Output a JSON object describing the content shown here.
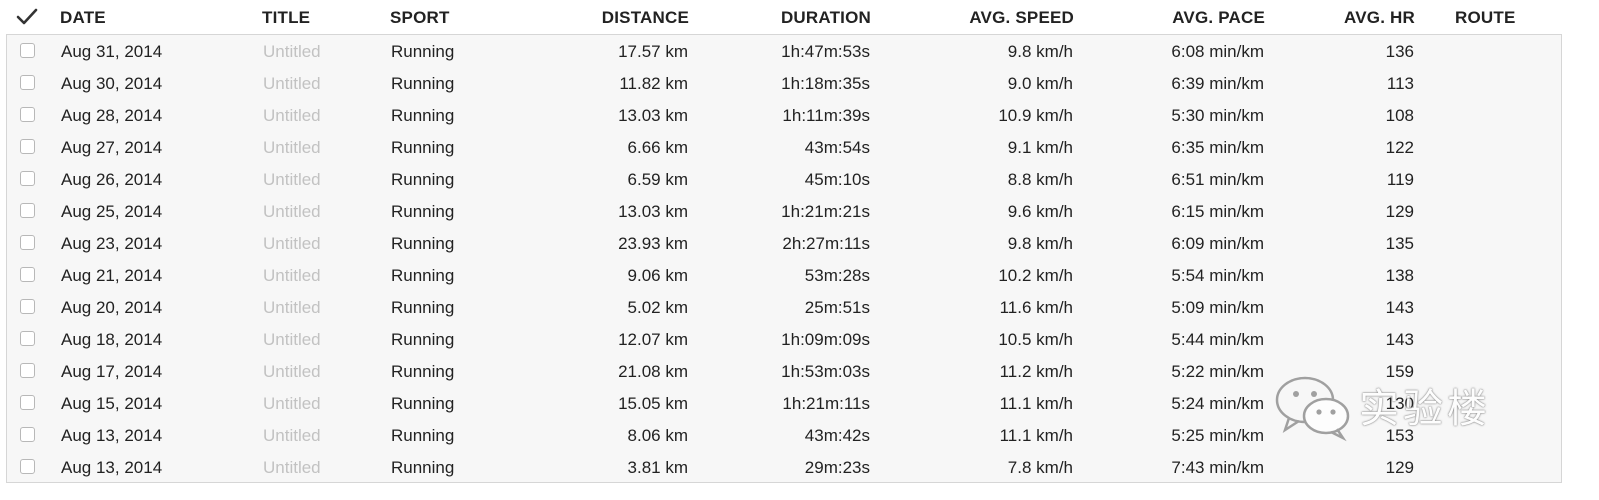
{
  "header": {
    "date": "DATE",
    "title": "TITLE",
    "sport": "SPORT",
    "distance": "DISTANCE",
    "duration": "DURATION",
    "avg_speed": "AVG. SPEED",
    "avg_pace": "AVG. PACE",
    "avg_hr": "AVG. HR",
    "route": "ROUTE",
    "select_all_icon": "checkmark-icon"
  },
  "rows": [
    {
      "date": "Aug 31, 2014",
      "title": "Untitled",
      "sport": "Running",
      "distance": "17.57 km",
      "duration": "1h:47m:53s",
      "speed": "9.8 km/h",
      "pace": "6:08 min/km",
      "hr": "136",
      "route": ""
    },
    {
      "date": "Aug 30, 2014",
      "title": "Untitled",
      "sport": "Running",
      "distance": "11.82 km",
      "duration": "1h:18m:35s",
      "speed": "9.0 km/h",
      "pace": "6:39 min/km",
      "hr": "113",
      "route": ""
    },
    {
      "date": "Aug 28, 2014",
      "title": "Untitled",
      "sport": "Running",
      "distance": "13.03 km",
      "duration": "1h:11m:39s",
      "speed": "10.9 km/h",
      "pace": "5:30 min/km",
      "hr": "108",
      "route": ""
    },
    {
      "date": "Aug 27, 2014",
      "title": "Untitled",
      "sport": "Running",
      "distance": "6.66 km",
      "duration": "43m:54s",
      "speed": "9.1 km/h",
      "pace": "6:35 min/km",
      "hr": "122",
      "route": ""
    },
    {
      "date": "Aug 26, 2014",
      "title": "Untitled",
      "sport": "Running",
      "distance": "6.59 km",
      "duration": "45m:10s",
      "speed": "8.8 km/h",
      "pace": "6:51 min/km",
      "hr": "119",
      "route": ""
    },
    {
      "date": "Aug 25, 2014",
      "title": "Untitled",
      "sport": "Running",
      "distance": "13.03 km",
      "duration": "1h:21m:21s",
      "speed": "9.6 km/h",
      "pace": "6:15 min/km",
      "hr": "129",
      "route": ""
    },
    {
      "date": "Aug 23, 2014",
      "title": "Untitled",
      "sport": "Running",
      "distance": "23.93 km",
      "duration": "2h:27m:11s",
      "speed": "9.8 km/h",
      "pace": "6:09 min/km",
      "hr": "135",
      "route": ""
    },
    {
      "date": "Aug 21, 2014",
      "title": "Untitled",
      "sport": "Running",
      "distance": "9.06 km",
      "duration": "53m:28s",
      "speed": "10.2 km/h",
      "pace": "5:54 min/km",
      "hr": "138",
      "route": ""
    },
    {
      "date": "Aug 20, 2014",
      "title": "Untitled",
      "sport": "Running",
      "distance": "5.02 km",
      "duration": "25m:51s",
      "speed": "11.6 km/h",
      "pace": "5:09 min/km",
      "hr": "143",
      "route": ""
    },
    {
      "date": "Aug 18, 2014",
      "title": "Untitled",
      "sport": "Running",
      "distance": "12.07 km",
      "duration": "1h:09m:09s",
      "speed": "10.5 km/h",
      "pace": "5:44 min/km",
      "hr": "143",
      "route": ""
    },
    {
      "date": "Aug 17, 2014",
      "title": "Untitled",
      "sport": "Running",
      "distance": "21.08 km",
      "duration": "1h:53m:03s",
      "speed": "11.2 km/h",
      "pace": "5:22 min/km",
      "hr": "159",
      "route": ""
    },
    {
      "date": "Aug 15, 2014",
      "title": "Untitled",
      "sport": "Running",
      "distance": "15.05 km",
      "duration": "1h:21m:11s",
      "speed": "11.1 km/h",
      "pace": "5:24 min/km",
      "hr": "130",
      "route": ""
    },
    {
      "date": "Aug 13, 2014",
      "title": "Untitled",
      "sport": "Running",
      "distance": "8.06 km",
      "duration": "43m:42s",
      "speed": "11.1 km/h",
      "pace": "5:25 min/km",
      "hr": "153",
      "route": ""
    },
    {
      "date": "Aug 13, 2014",
      "title": "Untitled",
      "sport": "Running",
      "distance": "3.81 km",
      "duration": "29m:23s",
      "speed": "7.8 km/h",
      "pace": "7:43 min/km",
      "hr": "129",
      "route": ""
    }
  ],
  "watermark": {
    "text": "实验楼",
    "icon": "wechat-icon"
  },
  "colors": {
    "title_placeholder": "#c2c2c2",
    "text": "#222222",
    "table_bg": "#f7f7f7",
    "border": "#d6d6d6"
  }
}
